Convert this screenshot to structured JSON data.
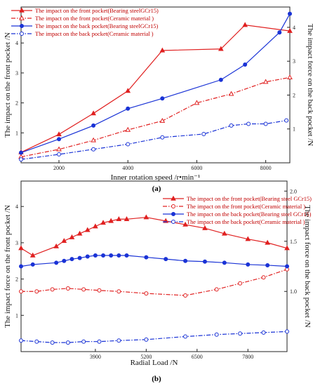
{
  "panels": [
    {
      "caption": "(a)",
      "chart_data": {
        "type": "line",
        "xlabel": "Inner rotation speed  /r•min⁻¹",
        "ylabel_left": "The impact on the front pocket /N",
        "ylabel_right": "The impact force on the back pocket /N",
        "xlim": [
          900,
          8700
        ],
        "ylim_left": [
          0,
          5.2
        ],
        "ylim_right": [
          0,
          4.6
        ],
        "x_ticks": [
          2000,
          4000,
          6000,
          8000
        ],
        "y_ticks_left": [
          1,
          2,
          3,
          4
        ],
        "y_ticks_right": [
          1,
          2,
          3,
          4
        ],
        "legend_position": "top-left",
        "series": [
          {
            "name": "The impact on the front pocket(Bearing steelGCr15)",
            "color": "#e02020",
            "axis": "left",
            "dash": "solid",
            "marker": "filled-triangle",
            "x": [
              900,
              2000,
              3000,
              4000,
              5000,
              6700,
              7400,
              8700
            ],
            "y": [
              0.35,
              0.95,
              1.65,
              2.4,
              3.75,
              3.8,
              4.6,
              4.4
            ]
          },
          {
            "name": "The impact on the front pocket(Ceramic   material  )",
            "color": "#e02020",
            "axis": "left",
            "dash": "dashdot",
            "marker": "open-triangle",
            "x": [
              900,
              2000,
              3000,
              4000,
              5000,
              6000,
              7000,
              8000,
              8700
            ],
            "y": [
              0.2,
              0.45,
              0.75,
              1.1,
              1.4,
              2.0,
              2.3,
              2.7,
              2.85
            ]
          },
          {
            "name": "The impact on the back pocket(Bearing steelGCr15)",
            "color": "#1a33d6",
            "axis": "right",
            "dash": "solid",
            "marker": "filled-circle",
            "x": [
              900,
              2000,
              3000,
              4000,
              5000,
              6700,
              7400,
              8400,
              8700
            ],
            "y": [
              0.3,
              0.7,
              1.1,
              1.6,
              1.9,
              2.45,
              2.9,
              3.85,
              4.4
            ]
          },
          {
            "name": "The impact on the back pocket(Ceramic   material  )",
            "color": "#1a33d6",
            "axis": "right",
            "dash": "dashdot",
            "marker": "open-circle",
            "x": [
              900,
              2000,
              3000,
              4000,
              5000,
              6200,
              7000,
              7500,
              8000,
              8600
            ],
            "y": [
              0.1,
              0.25,
              0.4,
              0.55,
              0.75,
              0.85,
              1.1,
              1.15,
              1.15,
              1.25
            ]
          }
        ]
      }
    },
    {
      "caption": "(b)",
      "chart_data": {
        "type": "line",
        "xlabel": "Radial Load /N",
        "ylabel_left": "The impact force on the front pocket /N",
        "ylabel_right": "The impact force on the back pocket /N",
        "xlim": [
          2000,
          8800
        ],
        "ylim_left": [
          0,
          4.7
        ],
        "ylim_right": [
          0.4,
          2.1
        ],
        "x_ticks": [
          3900,
          5200,
          6500,
          7800
        ],
        "y_ticks_left": [
          1,
          2,
          3,
          4
        ],
        "y_ticks_right": [
          1.0,
          1.5,
          2.0
        ],
        "legend_position": "top-right",
        "series": [
          {
            "name": "The impact on the front pocket(Bearing steel GCr15)",
            "color": "#e02020",
            "axis": "left",
            "dash": "solid",
            "marker": "filled-triangle",
            "x": [
              2000,
              2300,
              2900,
              3100,
              3300,
              3500,
              3700,
              3900,
              4100,
              4300,
              4500,
              4700,
              5200,
              5700,
              6200,
              6700,
              7200,
              7800,
              8300,
              8800
            ],
            "y": [
              2.85,
              2.65,
              2.9,
              3.05,
              3.15,
              3.25,
              3.35,
              3.45,
              3.55,
              3.6,
              3.65,
              3.65,
              3.7,
              3.6,
              3.5,
              3.4,
              3.25,
              3.1,
              3.0,
              2.85
            ]
          },
          {
            "name": "The impact on the front pocket(Ceramic   material  )",
            "color": "#e02020",
            "axis": "right",
            "dash": "dashdot",
            "marker": "open-circle",
            "x": [
              2000,
              2400,
              2800,
              3200,
              3600,
              4000,
              4500,
              5200,
              6200,
              7000,
              7600,
              8200,
              8800
            ],
            "y": [
              1.0,
              1.0,
              1.02,
              1.03,
              1.02,
              1.01,
              1.0,
              0.98,
              0.96,
              1.02,
              1.08,
              1.14,
              1.22
            ]
          },
          {
            "name": "The impact on the back pocket(Bearing steel GCr15)",
            "color": "#1a33d6",
            "axis": "left",
            "dash": "solid",
            "marker": "filled-circle",
            "x": [
              2000,
              2300,
              2900,
              3100,
              3300,
              3500,
              3700,
              3900,
              4100,
              4300,
              4500,
              4700,
              5200,
              5700,
              6200,
              6700,
              7200,
              7800,
              8300,
              8800
            ],
            "y": [
              2.35,
              2.4,
              2.45,
              2.5,
              2.55,
              2.58,
              2.62,
              2.65,
              2.65,
              2.65,
              2.65,
              2.65,
              2.6,
              2.55,
              2.5,
              2.48,
              2.45,
              2.4,
              2.38,
              2.35
            ]
          },
          {
            "name": "The impact on the back pocket(Ceramic   material  )",
            "color": "#1a33d6",
            "axis": "right",
            "dash": "dashdot",
            "marker": "open-circle",
            "x": [
              2000,
              2400,
              2800,
              3200,
              3600,
              4000,
              4500,
              5200,
              6200,
              7000,
              7600,
              8200,
              8800
            ],
            "y": [
              0.51,
              0.5,
              0.49,
              0.49,
              0.5,
              0.5,
              0.51,
              0.52,
              0.55,
              0.57,
              0.58,
              0.59,
              0.6
            ]
          }
        ]
      }
    }
  ]
}
